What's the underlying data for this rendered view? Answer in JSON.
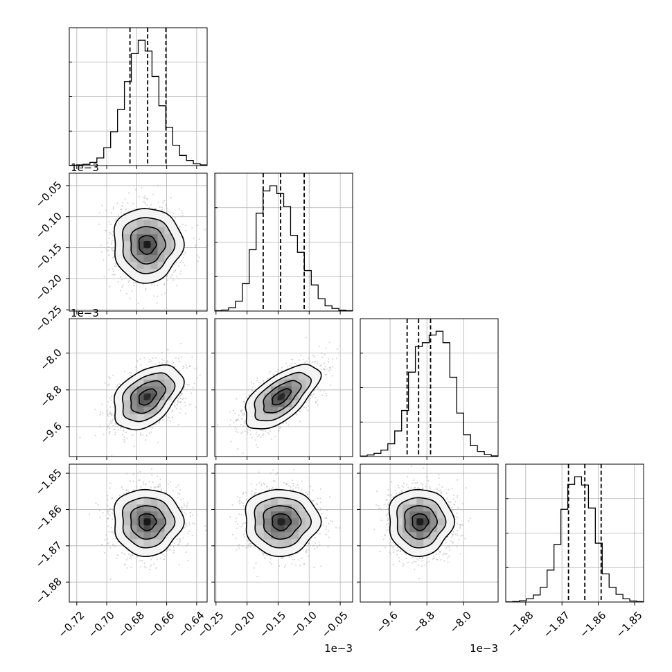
{
  "chart_data": {
    "type": "scatter",
    "subtype": "corner-plot",
    "grid": true,
    "parameters": [
      {
        "range": [
          -0.725,
          -0.633
        ],
        "ticks": [
          -0.72,
          -0.7,
          -0.68,
          -0.66,
          -0.64
        ],
        "tick_labels": [
          "−0.72",
          "−0.70",
          "−0.68",
          "−0.66",
          "−0.64"
        ],
        "offset_label": "",
        "mean": -0.673,
        "sd": 0.0115,
        "quantiles": [
          -0.6845,
          -0.6727,
          -0.6605
        ],
        "hist_counts": [
          2,
          5,
          10,
          25,
          60,
          140,
          265,
          440,
          660,
          880,
          985,
          900,
          700,
          470,
          300,
          160,
          80,
          40,
          14,
          5
        ]
      },
      {
        "range": [
          -0.252,
          -0.03
        ],
        "ticks": [
          -0.25,
          -0.2,
          -0.15,
          -0.1,
          -0.05
        ],
        "tick_labels": [
          "−0.25",
          "−0.20",
          "−0.15",
          "−0.10",
          "−0.05"
        ],
        "offset_label": "1e−3",
        "mean": -0.145,
        "sd": 0.03,
        "quantiles": [
          -0.174,
          -0.146,
          -0.108
        ],
        "hist_counts": [
          3,
          8,
          25,
          75,
          210,
          470,
          750,
          920,
          960,
          900,
          800,
          580,
          450,
          310,
          200,
          95,
          40,
          20,
          7,
          3
        ]
      },
      {
        "range": [
          -10.25,
          -7.25
        ],
        "ticks": [
          -9.6,
          -8.8,
          -8.0
        ],
        "tick_labels": [
          "−9.6",
          "−8.8",
          "−8.0"
        ],
        "offset_label": "1e−3",
        "mean": -8.95,
        "sd": 0.35,
        "quantiles": [
          -9.23,
          -8.98,
          -8.72
        ],
        "hist_counts": [
          4,
          12,
          25,
          50,
          100,
          200,
          360,
          660,
          860,
          890,
          950,
          980,
          890,
          620,
          340,
          170,
          85,
          40,
          15,
          5
        ]
      },
      {
        "range": [
          -1.8855,
          -1.8475
        ],
        "ticks": [
          -1.88,
          -1.87,
          -1.86,
          -1.85
        ],
        "tick_labels": [
          "−1.88",
          "−1.87",
          "−1.86",
          "−1.85"
        ],
        "offset_label": "",
        "mean": -1.8634,
        "sd": 0.0046,
        "quantiles": [
          -1.8682,
          -1.8637,
          -1.8592
        ],
        "hist_counts": [
          1,
          4,
          10,
          25,
          55,
          115,
          250,
          450,
          725,
          920,
          980,
          915,
          735,
          460,
          220,
          115,
          60,
          25,
          8,
          3
        ]
      }
    ],
    "correlations": [
      [
        1,
        0,
        0.42,
        0
      ],
      [
        0,
        1,
        0.62,
        0
      ],
      [
        0.42,
        0.62,
        1,
        0
      ],
      [
        0,
        0,
        0,
        1
      ]
    ],
    "contour_levels_sigma": [
      0.5,
      1,
      1.5,
      2
    ],
    "quantiles_shown": [
      0.16,
      0.5,
      0.84
    ]
  }
}
